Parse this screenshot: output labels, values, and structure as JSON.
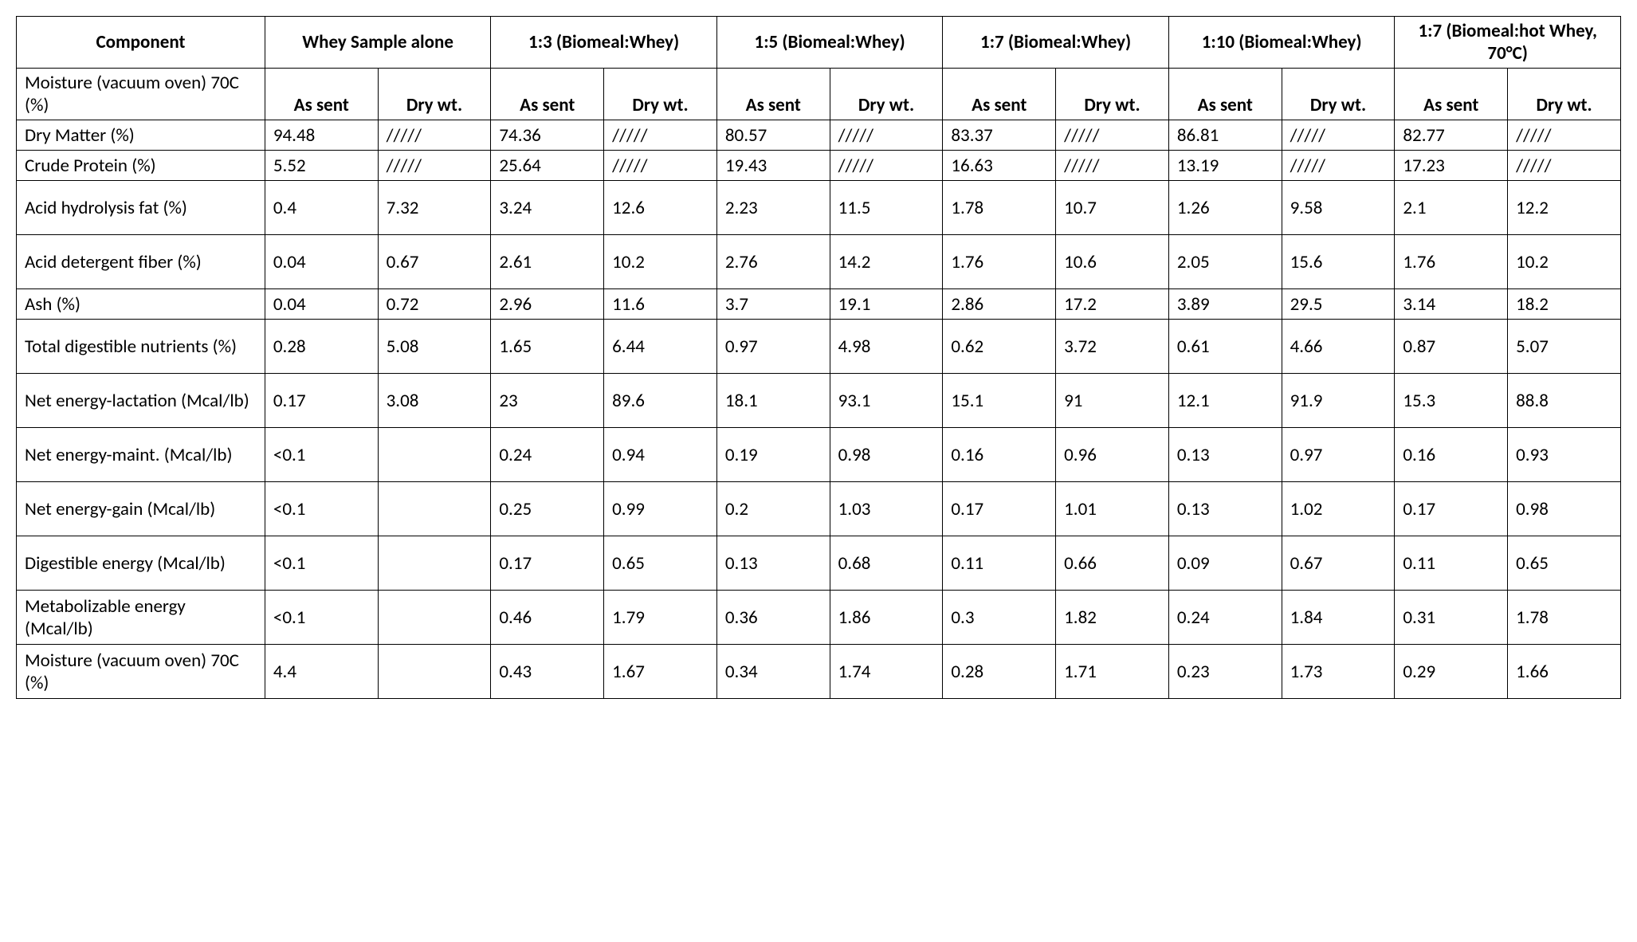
{
  "table": {
    "type": "table",
    "background_color": "#ffffff",
    "border_color": "#000000",
    "font_family": "Calibri",
    "font_size": 23,
    "header_font_weight": "bold",
    "component_header": "Component",
    "column_groups": [
      "Whey Sample alone",
      "1:3 (Biomeal:Whey)",
      "1:5 (Biomeal:Whey)",
      "1:7 (Biomeal:Whey)",
      "1:10 (Biomeal:Whey)",
      "1:7 (Biomeal:hot Whey, 70°C)"
    ],
    "sub_headers": {
      "as_sent": "As sent",
      "dry_wt": "Dry wt."
    },
    "rows": [
      {
        "label": "Moisture (vacuum oven) 70C (%)",
        "is_moisture_header": true,
        "cells": [
          "As sent",
          "Dry wt.",
          "As sent",
          "Dry wt.",
          "As sent",
          "Dry wt.",
          "As sent",
          "Dry wt.",
          "As sent",
          "Dry wt.",
          "As sent",
          "Dry wt."
        ]
      },
      {
        "label": "Dry Matter (%)",
        "cells": [
          "94.48",
          "/////",
          "74.36",
          "/////",
          "80.57",
          "/////",
          "83.37",
          "/////",
          "86.81",
          "/////",
          "82.77",
          "/////"
        ]
      },
      {
        "label": "Crude Protein (%)",
        "cells": [
          "5.52",
          "/////",
          "25.64",
          "/////",
          "19.43",
          "/////",
          "16.63",
          "/////",
          "13.19",
          "/////",
          "17.23",
          "/////"
        ]
      },
      {
        "label": "Acid hydrolysis fat (%)",
        "tall": true,
        "cells": [
          "0.4",
          "7.32",
          "3.24",
          "12.6",
          "2.23",
          "11.5",
          "1.78",
          "10.7",
          "1.26",
          "9.58",
          "2.1",
          "12.2"
        ]
      },
      {
        "label": "Acid detergent fiber (%)",
        "tall": true,
        "cells": [
          "0.04",
          "0.67",
          "2.61",
          "10.2",
          "2.76",
          "14.2",
          "1.76",
          "10.6",
          "2.05",
          "15.6",
          "1.76",
          "10.2"
        ]
      },
      {
        "label": "Ash (%)",
        "cells": [
          "0.04",
          "0.72",
          "2.96",
          "11.6",
          "3.7",
          "19.1",
          "2.86",
          "17.2",
          "3.89",
          "29.5",
          "3.14",
          "18.2"
        ]
      },
      {
        "label": "Total digestible nutrients (%)",
        "tall": true,
        "cells": [
          "0.28",
          "5.08",
          "1.65",
          "6.44",
          "0.97",
          "4.98",
          "0.62",
          "3.72",
          "0.61",
          "4.66",
          "0.87",
          "5.07"
        ]
      },
      {
        "label": "Net energy-lactation (Mcal/lb)",
        "tall": true,
        "cells": [
          "0.17",
          "3.08",
          "23",
          "89.6",
          "18.1",
          "93.1",
          "15.1",
          "91",
          "12.1",
          "91.9",
          "15.3",
          "88.8"
        ]
      },
      {
        "label": "Net energy-maint. (Mcal/lb)",
        "tall": true,
        "cells": [
          "<0.1",
          "",
          "0.24",
          "0.94",
          "0.19",
          "0.98",
          "0.16",
          "0.96",
          "0.13",
          "0.97",
          "0.16",
          "0.93"
        ]
      },
      {
        "label": "Net energy-gain (Mcal/lb)",
        "tall": true,
        "cells": [
          "<0.1",
          "",
          "0.25",
          "0.99",
          "0.2",
          "1.03",
          "0.17",
          "1.01",
          "0.13",
          "1.02",
          "0.17",
          "0.98"
        ]
      },
      {
        "label": "Digestible energy (Mcal/lb)",
        "tall": true,
        "cells": [
          "<0.1",
          "",
          "0.17",
          "0.65",
          "0.13",
          "0.68",
          "0.11",
          "0.66",
          "0.09",
          "0.67",
          "0.11",
          "0.65"
        ]
      },
      {
        "label": "Metabolizable energy (Mcal/lb)",
        "tall": true,
        "cells": [
          "<0.1",
          "",
          "0.46",
          "1.79",
          "0.36",
          "1.86",
          "0.3",
          "1.82",
          "0.24",
          "1.84",
          "0.31",
          "1.78"
        ]
      },
      {
        "label": "Moisture (vacuum oven) 70C (%)",
        "tall": true,
        "cells": [
          "4.4",
          "",
          "0.43",
          "1.67",
          "0.34",
          "1.74",
          "0.28",
          "1.71",
          "0.23",
          "1.73",
          "0.29",
          "1.66"
        ]
      }
    ]
  }
}
